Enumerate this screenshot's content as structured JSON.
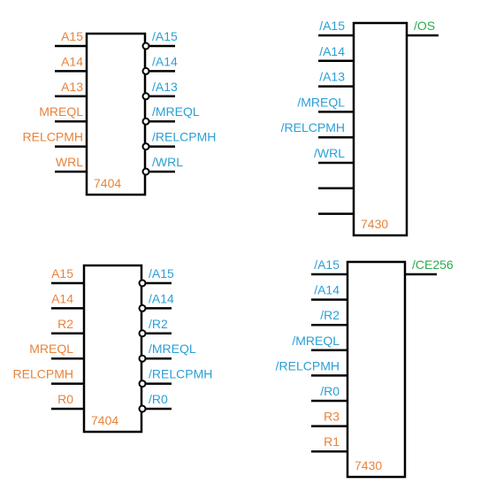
{
  "chips": [
    {
      "label": "7404",
      "inputs": [
        "A15",
        "A14",
        "A13",
        "MREQL",
        "RELCPMH",
        "WRL"
      ],
      "outputs": [
        "/A15",
        "/A14",
        "/A13",
        "/MREQL",
        "/RELCPMH",
        "/WRL"
      ]
    },
    {
      "label": "7430",
      "inputs": [
        "/A15",
        "/A14",
        "/A13",
        "/MREQL",
        "/RELCPMH",
        "/WRL"
      ],
      "outputs": [
        "/OS"
      ]
    },
    {
      "label": "7404",
      "inputs": [
        "A15",
        "A14",
        "R2",
        "MREQL",
        "RELCPMH",
        "R0"
      ],
      "outputs": [
        "/A15",
        "/A14",
        "/R2",
        "/MREQL",
        "/RELCPMH",
        "/R0"
      ]
    },
    {
      "label": "7430",
      "inputs": [
        "/A15",
        "/A14",
        "/R2",
        "/MREQL",
        "/RELCPMH",
        "/R0",
        "R3",
        "R1"
      ],
      "outputs": [
        "/CE256"
      ]
    }
  ]
}
